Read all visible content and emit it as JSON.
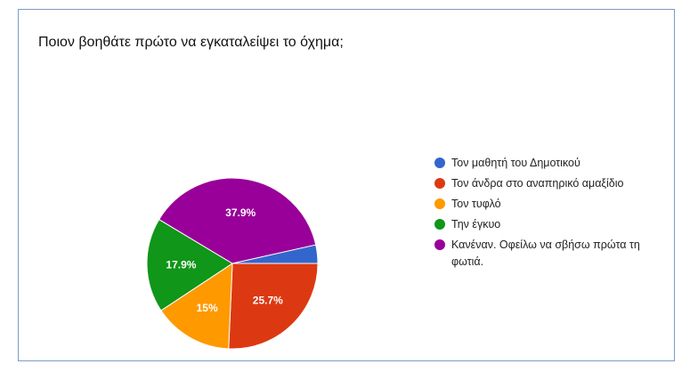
{
  "chart_data": {
    "type": "pie",
    "title": "Ποιον βοηθάτε πρώτο να εγκαταλείψει το όχημα;",
    "slices": [
      {
        "label": "Τον μαθητή του Δημοτικού",
        "value": 3.5,
        "display": "",
        "color": "#3366cc"
      },
      {
        "label": "Τον άνδρα στο αναπηρικό αμαξίδιο",
        "value": 25.7,
        "display": "25.7%",
        "color": "#dc3912"
      },
      {
        "label": "Τον τυφλό",
        "value": 15,
        "display": "15%",
        "color": "#ff9900"
      },
      {
        "label": "Την έγκυο",
        "value": 17.9,
        "display": "17.9%",
        "color": "#109618"
      },
      {
        "label": "Κανέναν. Οφείλω να σβήσω πρώτα τη φωτιά.",
        "value": 37.9,
        "display": "37.9%",
        "color": "#990099"
      }
    ],
    "legend_position": "right"
  }
}
